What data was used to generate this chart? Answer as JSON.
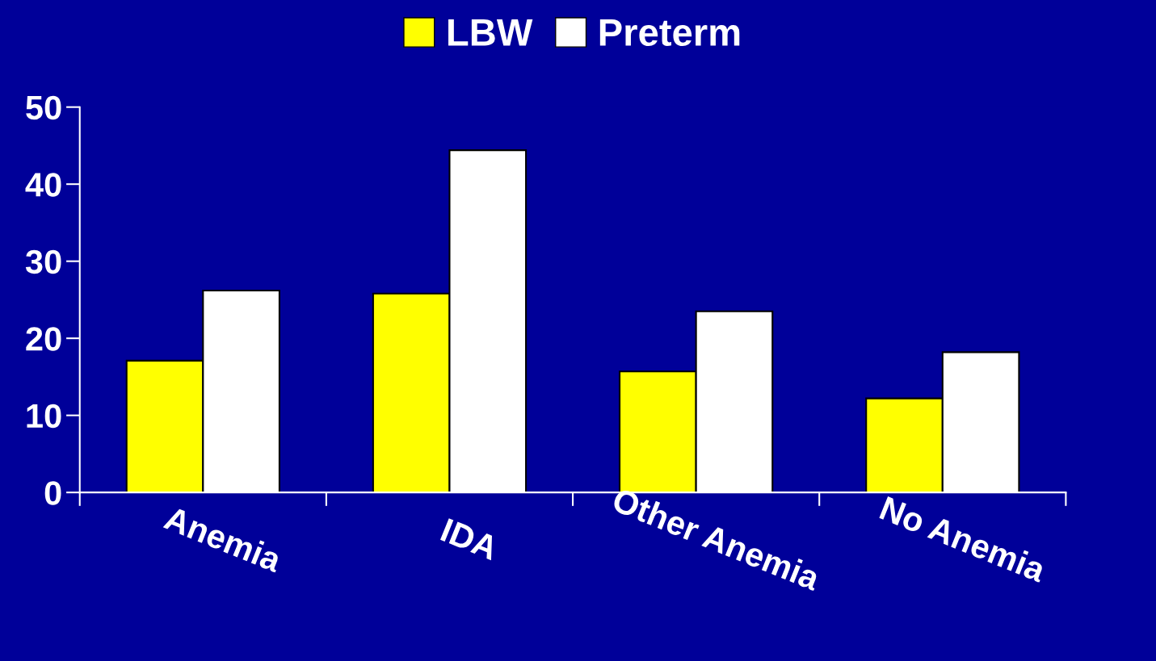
{
  "chart_data": {
    "type": "bar",
    "categories": [
      "Anemia",
      "IDA",
      "Other Anemia",
      "No Anemia"
    ],
    "series": [
      {
        "name": "LBW",
        "color": "#ffff00",
        "values": [
          17.1,
          25.8,
          15.7,
          12.2
        ]
      },
      {
        "name": "Preterm",
        "color": "#ffffff",
        "values": [
          26.2,
          44.4,
          23.5,
          18.2
        ]
      }
    ],
    "ylim": [
      0,
      50
    ],
    "yticks": [
      0,
      10,
      20,
      30,
      40,
      50
    ],
    "grid": false,
    "legend": "top"
  }
}
